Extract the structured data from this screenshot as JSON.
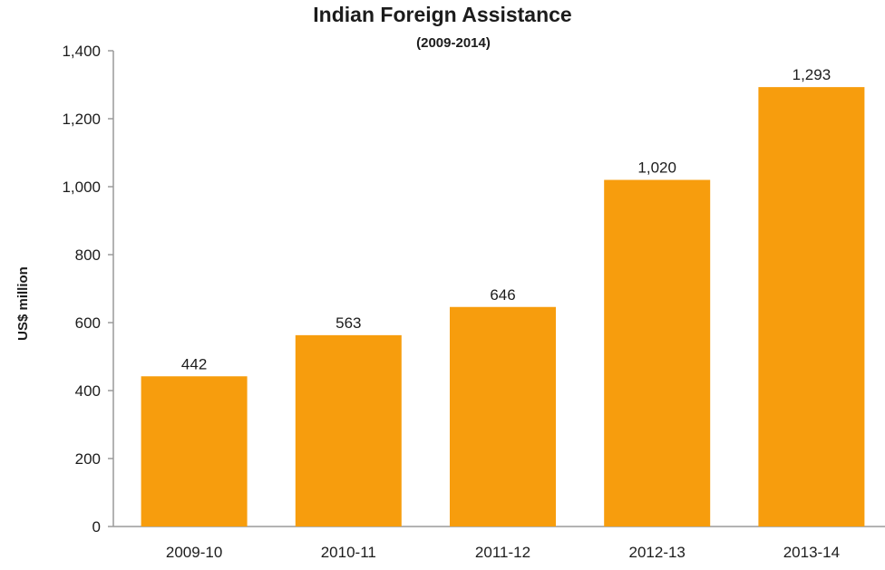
{
  "chart_data": {
    "type": "bar",
    "title": "Indian Foreign Assistance",
    "subtitle": "(2009-2014)",
    "xlabel": "",
    "ylabel": "US$ million",
    "categories": [
      "2009-10",
      "2010-11",
      "2011-12",
      "2012-13",
      "2013-14"
    ],
    "values": [
      442,
      563,
      646,
      1020,
      1293
    ],
    "value_labels": [
      "442",
      "563",
      "646",
      "1,020",
      "1,293"
    ],
    "ylim": [
      0,
      1400
    ],
    "yticks": [
      0,
      200,
      400,
      600,
      800,
      1000,
      1200,
      1400
    ],
    "ytick_labels": [
      "0",
      "200",
      "400",
      "600",
      "800",
      "1,000",
      "1,200",
      "1,400"
    ],
    "bar_color": "#f79d0d",
    "axis_color": "#9a9a9a",
    "grid": false,
    "legend": "none"
  }
}
